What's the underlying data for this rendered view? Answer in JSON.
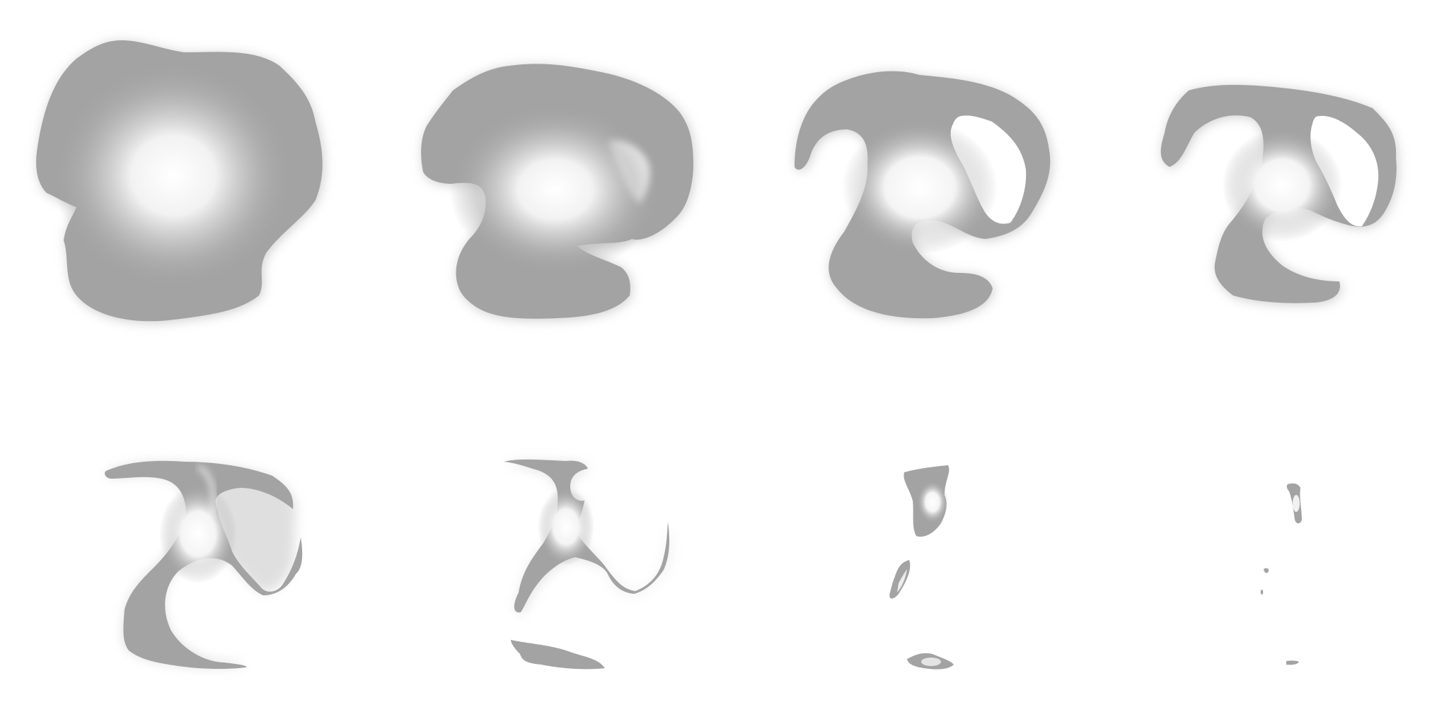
{
  "figure": {
    "background": "#ffffff",
    "shape_fill": "#a3a3a3",
    "glow_color": "#ffffff",
    "panel_count": 8,
    "rows": 2,
    "columns": 4
  }
}
